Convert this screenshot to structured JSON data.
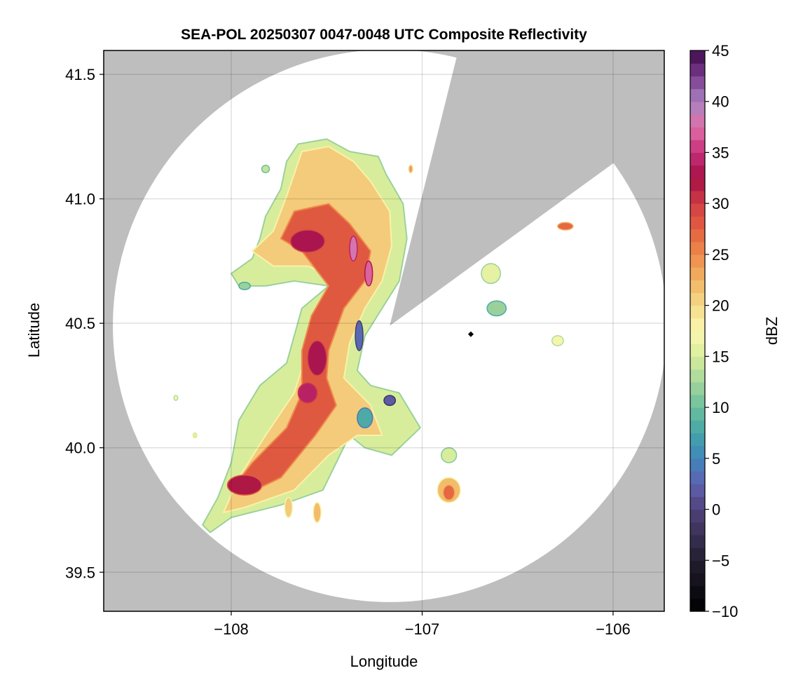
{
  "chart_data": {
    "type": "heatmap",
    "title": "SEA-POL 20250307 0047-0048 UTC Composite Reflectivity",
    "xlabel": "Longitude",
    "ylabel": "Latitude",
    "xlim": [
      -108.668,
      -105.732
    ],
    "ylim": [
      39.343,
      41.596
    ],
    "xticks": [
      -108,
      -107,
      -106
    ],
    "xtick_labels": [
      "−108",
      "−107",
      "−106"
    ],
    "yticks": [
      39.5,
      40.0,
      40.5,
      41.0,
      41.5
    ],
    "ytick_labels": [
      "39.5",
      "40.0",
      "40.5",
      "41.0",
      "41.5"
    ],
    "grid": true,
    "colorbar": {
      "label": "dBZ",
      "range": [
        -10,
        45
      ],
      "n_bands": 44,
      "ticks": [
        -10,
        -5,
        0,
        5,
        10,
        15,
        20,
        25,
        30,
        35,
        40,
        45
      ],
      "tick_labels": [
        "−10",
        "−5",
        "0",
        "5",
        "10",
        "15",
        "20",
        "25",
        "30",
        "35",
        "40",
        "45"
      ],
      "colormap": [
        [
          -10,
          "#000000"
        ],
        [
          -5,
          "#231e30"
        ],
        [
          0,
          "#50427a"
        ],
        [
          2.5,
          "#5e62b0"
        ],
        [
          5,
          "#3f86bc"
        ],
        [
          7.5,
          "#45a5a8"
        ],
        [
          10,
          "#6cbf9d"
        ],
        [
          12.5,
          "#a5d69b"
        ],
        [
          15,
          "#d8ed9c"
        ],
        [
          17.5,
          "#fbf8b0"
        ],
        [
          20,
          "#f5da8a"
        ],
        [
          22.5,
          "#f1b463"
        ],
        [
          25,
          "#ee8a4b"
        ],
        [
          27.5,
          "#e3603f"
        ],
        [
          30,
          "#d13d45"
        ],
        [
          32.5,
          "#a50f45"
        ],
        [
          35,
          "#c52f78"
        ],
        [
          37.5,
          "#e070a8"
        ],
        [
          40,
          "#a883c0"
        ],
        [
          42.5,
          "#7a3b8e"
        ],
        [
          45,
          "#3e0a4a"
        ]
      ]
    },
    "background_color": "#bebebe",
    "radar": {
      "lon": -107.17,
      "lat": 40.49,
      "range_lon_deg": 1.45,
      "range_lat_deg": 1.11,
      "blocked_sector_azimuth_deg": [
        14,
        54
      ]
    },
    "marker": {
      "lon": -106.745,
      "lat": 40.456
    },
    "echo_polygons": [
      {
        "dbz": 15,
        "points": [
          [
            -107.65,
            41.22
          ],
          [
            -107.5,
            41.24
          ],
          [
            -107.38,
            41.19
          ],
          [
            -107.23,
            41.17
          ],
          [
            -107.19,
            41.1
          ],
          [
            -107.1,
            40.98
          ],
          [
            -107.08,
            40.84
          ],
          [
            -107.12,
            40.67
          ],
          [
            -107.21,
            40.56
          ],
          [
            -107.3,
            40.45
          ],
          [
            -107.34,
            40.31
          ],
          [
            -107.27,
            40.25
          ],
          [
            -107.12,
            40.22
          ],
          [
            -107.01,
            40.08
          ],
          [
            -107.16,
            39.97
          ],
          [
            -107.3,
            40.0
          ],
          [
            -107.38,
            40.05
          ],
          [
            -107.52,
            39.83
          ],
          [
            -107.74,
            39.77
          ],
          [
            -108.0,
            39.72
          ],
          [
            -108.11,
            39.66
          ],
          [
            -108.15,
            39.69
          ],
          [
            -108.07,
            39.8
          ],
          [
            -108.0,
            39.94
          ],
          [
            -107.96,
            40.11
          ],
          [
            -107.85,
            40.25
          ],
          [
            -107.71,
            40.34
          ],
          [
            -107.67,
            40.45
          ],
          [
            -107.63,
            40.56
          ],
          [
            -107.49,
            40.65
          ],
          [
            -107.67,
            40.67
          ],
          [
            -107.82,
            40.65
          ],
          [
            -107.96,
            40.65
          ],
          [
            -108.0,
            40.7
          ],
          [
            -107.89,
            40.76
          ],
          [
            -107.85,
            40.84
          ],
          [
            -107.82,
            40.93
          ],
          [
            -107.74,
            41.04
          ],
          [
            -107.71,
            41.15
          ]
        ]
      },
      {
        "dbz": 21,
        "points": [
          [
            -107.63,
            41.19
          ],
          [
            -107.49,
            41.21
          ],
          [
            -107.36,
            41.15
          ],
          [
            -107.27,
            41.07
          ],
          [
            -107.17,
            40.95
          ],
          [
            -107.16,
            40.81
          ],
          [
            -107.21,
            40.67
          ],
          [
            -107.3,
            40.56
          ],
          [
            -107.38,
            40.42
          ],
          [
            -107.41,
            40.28
          ],
          [
            -107.27,
            40.17
          ],
          [
            -107.21,
            40.05
          ],
          [
            -107.34,
            40.05
          ],
          [
            -107.49,
            39.97
          ],
          [
            -107.67,
            39.83
          ],
          [
            -107.93,
            39.76
          ],
          [
            -108.04,
            39.74
          ],
          [
            -107.96,
            39.88
          ],
          [
            -107.82,
            40.05
          ],
          [
            -107.67,
            40.22
          ],
          [
            -107.6,
            40.39
          ],
          [
            -107.56,
            40.56
          ],
          [
            -107.41,
            40.67
          ],
          [
            -107.6,
            40.73
          ],
          [
            -107.78,
            40.73
          ],
          [
            -107.89,
            40.79
          ],
          [
            -107.78,
            40.87
          ],
          [
            -107.71,
            41.01
          ]
        ]
      },
      {
        "dbz": 28,
        "points": [
          [
            -107.67,
            40.95
          ],
          [
            -107.49,
            40.98
          ],
          [
            -107.38,
            40.9
          ],
          [
            -107.27,
            40.79
          ],
          [
            -107.3,
            40.67
          ],
          [
            -107.41,
            40.56
          ],
          [
            -107.49,
            40.39
          ],
          [
            -107.5,
            40.28
          ],
          [
            -107.45,
            40.17
          ],
          [
            -107.56,
            40.05
          ],
          [
            -107.74,
            39.88
          ],
          [
            -107.93,
            39.81
          ],
          [
            -108.0,
            39.83
          ],
          [
            -107.89,
            39.94
          ],
          [
            -107.71,
            40.08
          ],
          [
            -107.63,
            40.22
          ],
          [
            -107.63,
            40.39
          ],
          [
            -107.58,
            40.53
          ],
          [
            -107.49,
            40.65
          ],
          [
            -107.63,
            40.79
          ],
          [
            -107.74,
            40.84
          ]
        ]
      }
    ],
    "echo_cells": [
      {
        "lon": -107.6,
        "lat": 40.83,
        "rlon": 0.09,
        "rlat": 0.045,
        "dbz": 33
      },
      {
        "lon": -107.55,
        "lat": 40.36,
        "rlon": 0.05,
        "rlat": 0.07,
        "dbz": 33
      },
      {
        "lon": -107.6,
        "lat": 40.22,
        "rlon": 0.05,
        "rlat": 0.04,
        "dbz": 34
      },
      {
        "lon": -107.93,
        "lat": 39.85,
        "rlon": 0.09,
        "rlat": 0.04,
        "dbz": 32
      },
      {
        "lon": -107.36,
        "lat": 40.8,
        "rlon": 0.02,
        "rlat": 0.05,
        "dbz": 38
      },
      {
        "lon": -107.28,
        "lat": 40.7,
        "rlon": 0.02,
        "rlat": 0.05,
        "dbz": 37
      },
      {
        "lon": -107.33,
        "lat": 40.45,
        "rlon": 0.02,
        "rlat": 0.06,
        "dbz": 3
      },
      {
        "lon": -107.17,
        "lat": 40.19,
        "rlon": 0.03,
        "rlat": 0.02,
        "dbz": 2
      },
      {
        "lon": -107.3,
        "lat": 40.12,
        "rlon": 0.04,
        "rlat": 0.04,
        "dbz": 8
      },
      {
        "lon": -106.25,
        "lat": 40.89,
        "rlon": 0.04,
        "rlat": 0.015,
        "dbz": 27
      },
      {
        "lon": -106.64,
        "lat": 40.7,
        "rlon": 0.05,
        "rlat": 0.04,
        "dbz": 16
      },
      {
        "lon": -106.61,
        "lat": 40.56,
        "rlon": 0.05,
        "rlat": 0.03,
        "dbz": 12
      },
      {
        "lon": -106.29,
        "lat": 40.43,
        "rlon": 0.03,
        "rlat": 0.02,
        "dbz": 17
      },
      {
        "lon": -106.86,
        "lat": 39.83,
        "rlon": 0.06,
        "rlat": 0.05,
        "dbz": 22
      },
      {
        "lon": -106.86,
        "lat": 39.82,
        "rlon": 0.03,
        "rlat": 0.03,
        "dbz": 27
      },
      {
        "lon": -106.86,
        "lat": 39.97,
        "rlon": 0.04,
        "rlat": 0.03,
        "dbz": 15
      },
      {
        "lon": -107.82,
        "lat": 41.12,
        "rlon": 0.02,
        "rlat": 0.015,
        "dbz": 14
      },
      {
        "lon": -107.93,
        "lat": 40.65,
        "rlon": 0.03,
        "rlat": 0.015,
        "dbz": 12
      },
      {
        "lon": -107.7,
        "lat": 39.76,
        "rlon": 0.02,
        "rlat": 0.04,
        "dbz": 21
      },
      {
        "lon": -107.55,
        "lat": 39.74,
        "rlon": 0.02,
        "rlat": 0.04,
        "dbz": 22
      },
      {
        "lon": -108.29,
        "lat": 40.2,
        "rlon": 0.01,
        "rlat": 0.01,
        "dbz": 17
      },
      {
        "lon": -108.19,
        "lat": 40.05,
        "rlon": 0.01,
        "rlat": 0.01,
        "dbz": 19
      },
      {
        "lon": -107.06,
        "lat": 41.12,
        "rlon": 0.01,
        "rlat": 0.015,
        "dbz": 24
      }
    ]
  }
}
